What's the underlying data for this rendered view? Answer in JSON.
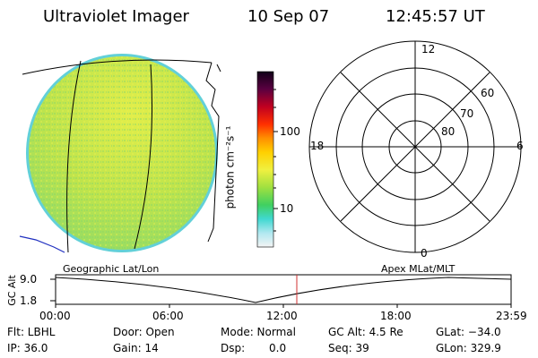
{
  "header": {
    "title": "Ultraviolet Imager",
    "date": "10 Sep 07",
    "time": "12:45:57 UT"
  },
  "colorbar": {
    "unit_label": "photon cm⁻²s⁻¹",
    "ticks": [
      "100",
      "10"
    ]
  },
  "polar": {
    "mlt_labels": {
      "top": "12",
      "left": "18",
      "right": "6",
      "bottom": "0"
    },
    "lat_labels": [
      "60",
      "70",
      "80"
    ]
  },
  "timeline": {
    "y_label": "GC Alt",
    "y_ticks": [
      "9.0",
      "1.8"
    ],
    "left_caption": "Geographic Lat/Lon",
    "right_caption": "Apex MLat/MLT",
    "x_ticks": [
      "00:00",
      "06:00",
      "12:00",
      "18:00",
      "23:59"
    ]
  },
  "status": {
    "filter": "Flt: LBHL",
    "ip": "IP: 36.0",
    "door": "Door: Open",
    "gain": "Gain: 14",
    "mode": "Mode: Normal",
    "dsp_label": "Dsp:",
    "dsp_value": "0.0",
    "gc_alt": "GC Alt: 4.5 Re",
    "seq": "Seq: 39",
    "glat": "GLat: −34.0",
    "glon": "GLon: 329.9"
  },
  "colors": {
    "disk_fill": "#b8e64a",
    "disk_edge": "#5fd0d8",
    "current_time_marker": "#d03030",
    "coastline": "#2030c0"
  }
}
